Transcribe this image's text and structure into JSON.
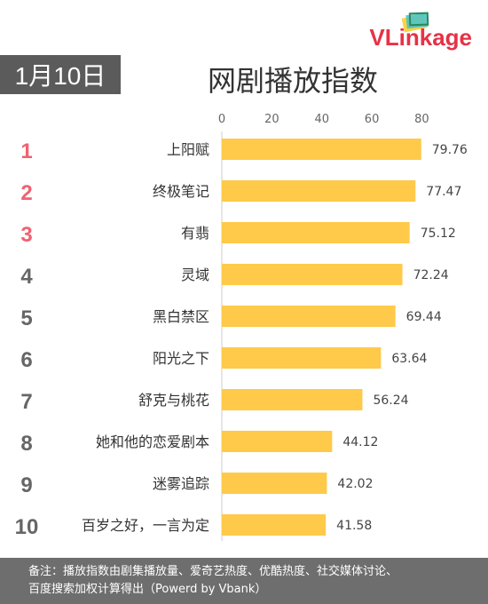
{
  "brand": {
    "logo_text": "VLinkage",
    "accent": "#e63246"
  },
  "date_badge": "1月10日",
  "title": "网剧播放指数",
  "chart_data": {
    "type": "bar",
    "orientation": "horizontal",
    "title": "网剧播放指数",
    "xlim": [
      0,
      80
    ],
    "x_ticks": [
      "0",
      "20",
      "40",
      "60",
      "80"
    ],
    "ranks": [
      "1",
      "2",
      "3",
      "4",
      "5",
      "6",
      "7",
      "8",
      "9",
      "10"
    ],
    "categories": [
      "上阳赋",
      "终极笔记",
      "有翡",
      "灵域",
      "黑白禁区",
      "阳光之下",
      "舒克与桃花",
      "她和他的恋爱剧本",
      "迷雾追踪",
      "百岁之好，一言为定"
    ],
    "values": [
      79.76,
      77.47,
      75.12,
      72.24,
      69.44,
      63.64,
      56.24,
      44.12,
      42.02,
      41.58
    ],
    "value_labels": [
      "79.76",
      "77.47",
      "75.12",
      "72.24",
      "69.44",
      "63.64",
      "56.24",
      "44.12",
      "42.02",
      "41.58"
    ],
    "bar_color": "#ffc94a",
    "top_rank_color": "#f06270",
    "rank_color": "#666666"
  },
  "footer": {
    "line1": "备注：播放指数由剧集播放量、爱奇艺热度、优酷热度、社交媒体讨论、",
    "line2": "百度搜索加权计算得出（Powerd by Vbank）"
  }
}
